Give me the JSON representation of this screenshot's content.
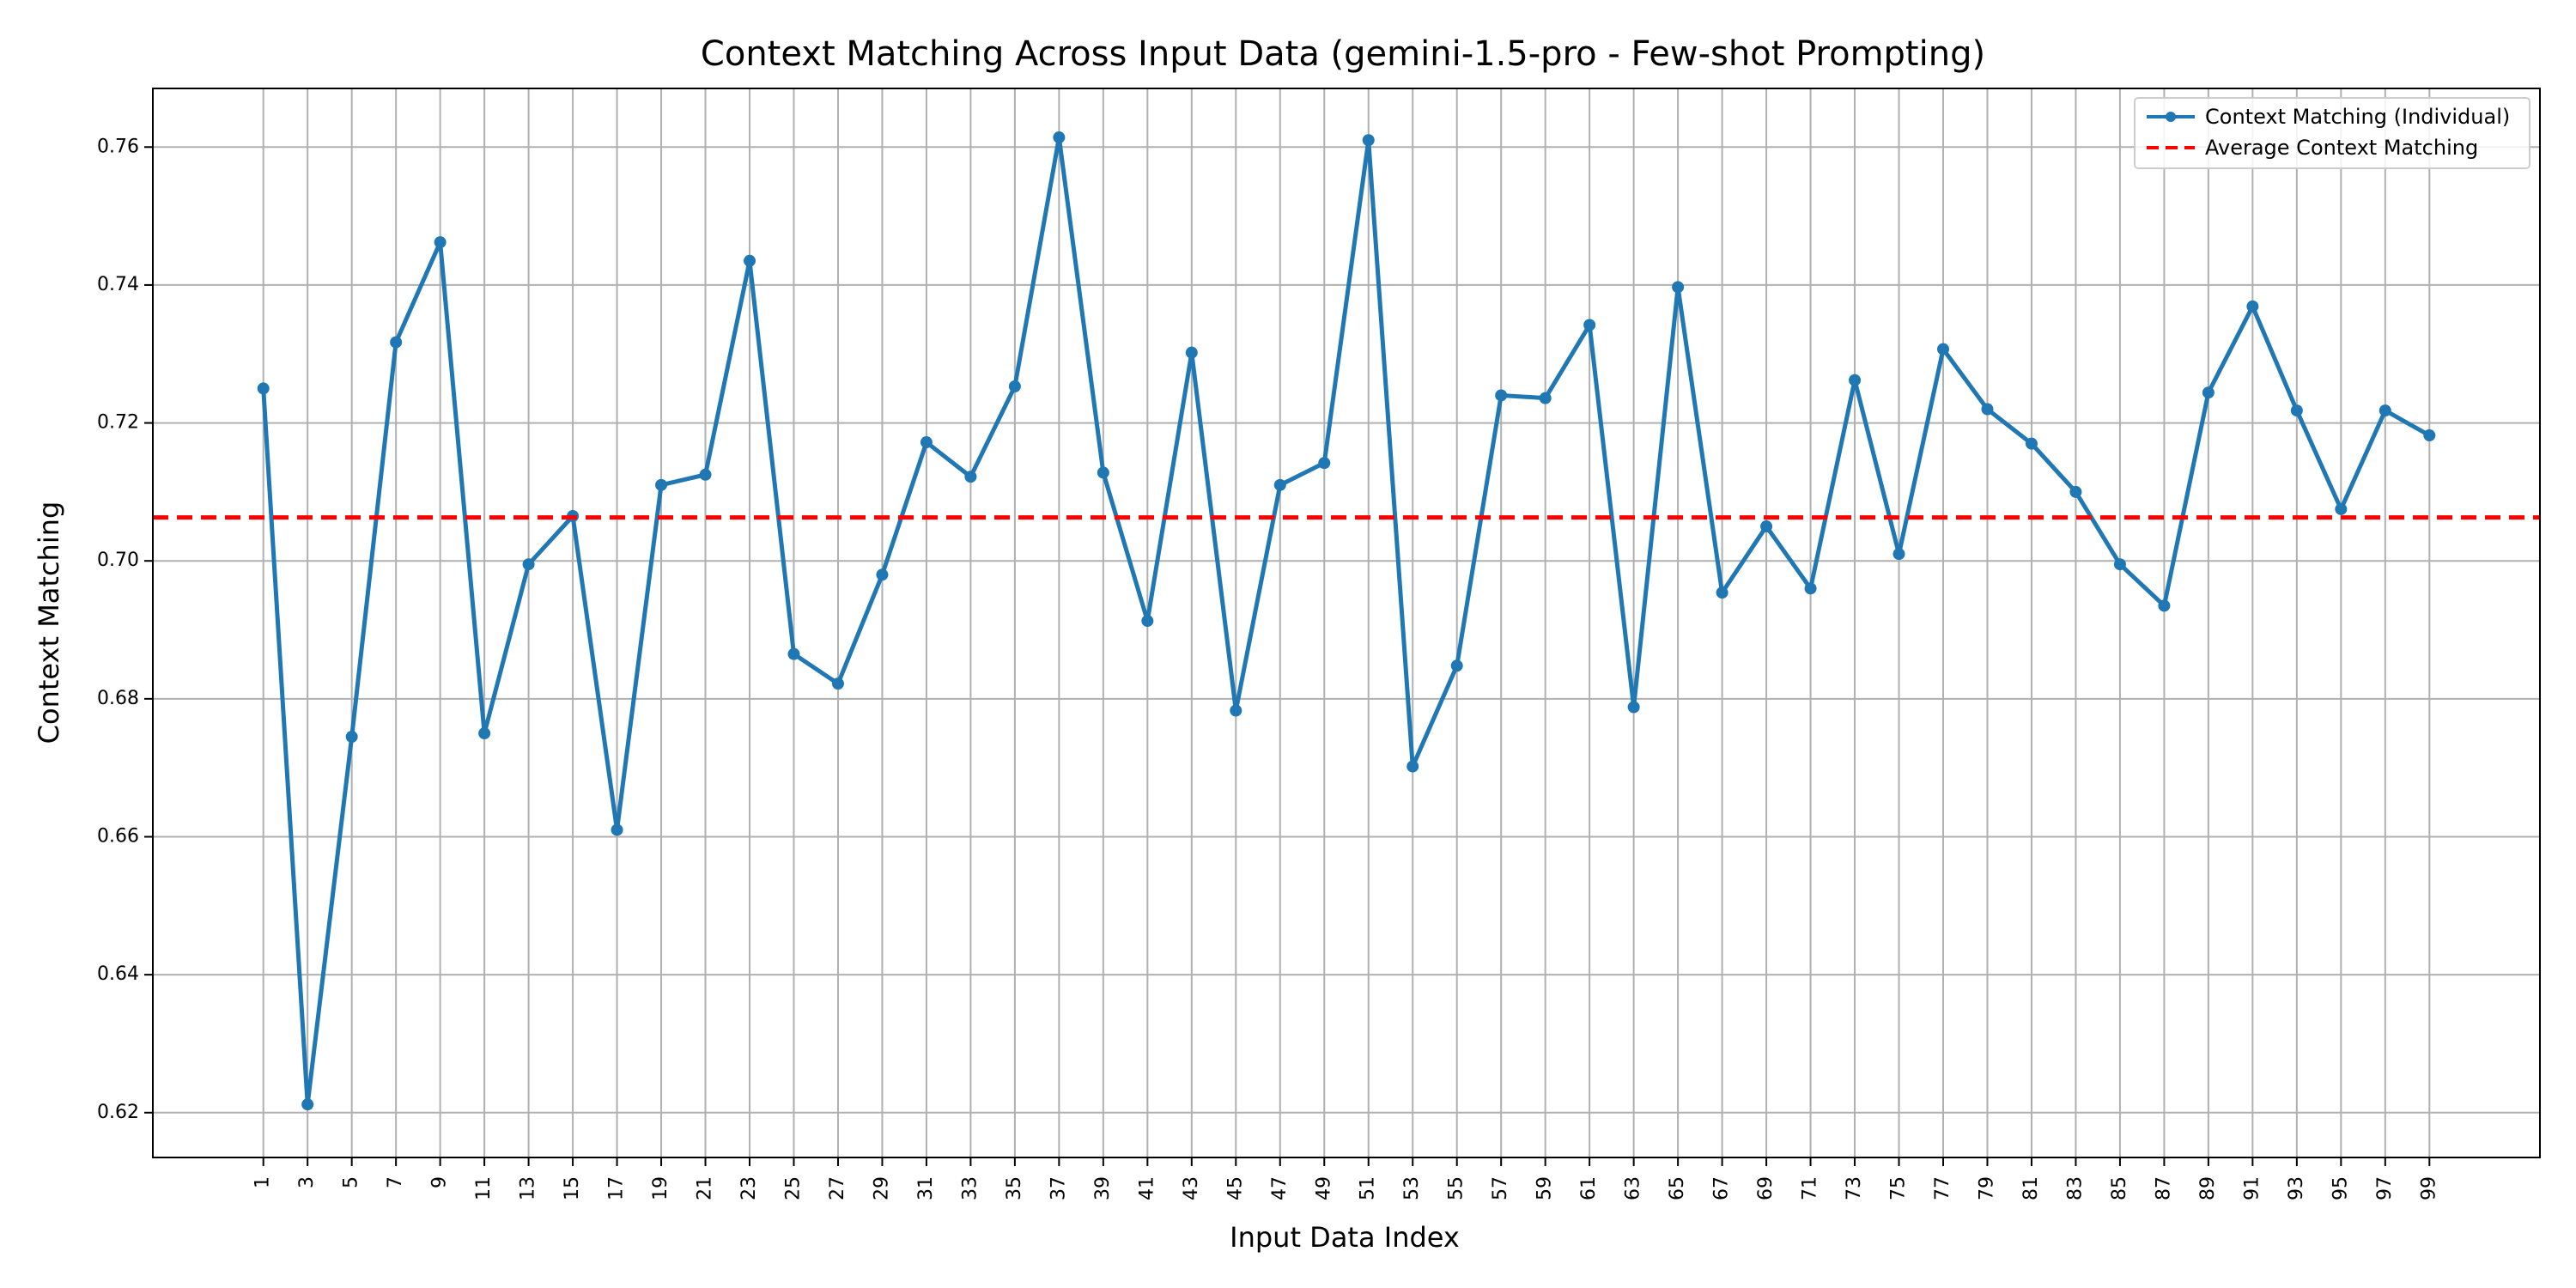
{
  "chart_data": {
    "type": "line",
    "title": "Context Matching Across Input Data (gemini-1.5-pro - Few-shot Prompting)",
    "xlabel": "Input Data Index",
    "ylabel": "Context Matching",
    "x": [
      1,
      3,
      5,
      7,
      9,
      11,
      13,
      15,
      17,
      19,
      21,
      23,
      25,
      27,
      29,
      31,
      33,
      35,
      37,
      39,
      41,
      43,
      45,
      47,
      49,
      51,
      53,
      55,
      57,
      59,
      61,
      63,
      65,
      67,
      69,
      71,
      73,
      75,
      77,
      79,
      81,
      83,
      85,
      87,
      89,
      91,
      93,
      95,
      97,
      99
    ],
    "x_ticks": [
      "1",
      "3",
      "5",
      "7",
      "9",
      "11",
      "13",
      "15",
      "17",
      "19",
      "21",
      "23",
      "25",
      "27",
      "29",
      "31",
      "33",
      "35",
      "37",
      "39",
      "41",
      "43",
      "45",
      "47",
      "49",
      "51",
      "53",
      "55",
      "57",
      "59",
      "61",
      "63",
      "65",
      "67",
      "69",
      "71",
      "73",
      "75",
      "77",
      "79",
      "81",
      "83",
      "85",
      "87",
      "89",
      "91",
      "93",
      "95",
      "97",
      "99"
    ],
    "xlim": [
      -4.0,
      104.0
    ],
    "y_ticks": [
      "0.62",
      "0.64",
      "0.66",
      "0.68",
      "0.70",
      "0.72",
      "0.74",
      "0.76"
    ],
    "ylim": [
      0.6135,
      0.7685
    ],
    "series": [
      {
        "name": "Context Matching (Individual)",
        "color": "#1f77b4",
        "marker": "circle",
        "values": [
          0.725,
          0.6212,
          0.6745,
          0.7317,
          0.7462,
          0.675,
          0.6995,
          0.7065,
          0.661,
          0.711,
          0.7125,
          0.7435,
          0.6865,
          0.6822,
          0.698,
          0.7172,
          0.7122,
          0.7253,
          0.7614,
          0.7128,
          0.6913,
          0.7302,
          0.6783,
          0.711,
          0.7142,
          0.761,
          0.6702,
          0.6848,
          0.724,
          0.7236,
          0.7342,
          0.6788,
          0.7397,
          0.6954,
          0.705,
          0.696,
          0.7262,
          0.701,
          0.7307,
          0.722,
          0.717,
          0.71,
          0.6995,
          0.6935,
          0.7244,
          0.7369,
          0.7218,
          0.7075,
          0.7218,
          0.7182
        ]
      },
      {
        "name": "Average Context Matching",
        "color": "#ff0000",
        "style": "dashed",
        "value": 0.7063
      }
    ],
    "grid": true,
    "legend_position": "top-right"
  }
}
